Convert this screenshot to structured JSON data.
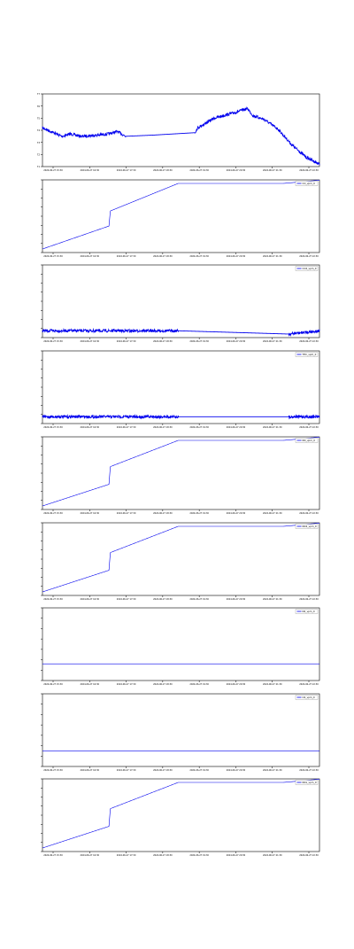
{
  "chart_data": [
    {
      "type": "line",
      "legend": "",
      "y_ticks": [
        "77",
        "76",
        "75",
        "74",
        "73",
        "72",
        "71"
      ],
      "x_ticks": [
        "2024-06-27 15:30",
        "2024-06-27 16:30",
        "2024-06-27 17:30",
        "2024-06-27 18:30",
        "2024-06-27 19:30",
        "2024-06-27 20:30",
        "2024-06-27 21:30",
        "2024-06-27 22:30"
      ],
      "series": [
        {
          "color": "#0000ee",
          "noisy": true,
          "x": [
            0,
            0.03,
            0.07,
            0.1,
            0.14,
            0.2,
            0.24,
            0.27,
            0.3,
            0.4,
            0.55,
            0.56,
            0.62,
            0.7,
            0.74,
            0.76,
            0.8,
            0.85,
            0.9,
            0.95,
            1
          ],
          "y": [
            74.2,
            73.9,
            73.5,
            73.7,
            73.5,
            73.6,
            73.7,
            73.9,
            73.5,
            73.6,
            73.8,
            74.2,
            75.0,
            75.5,
            75.8,
            75.2,
            74.9,
            74.1,
            72.8,
            71.8,
            71.2
          ]
        }
      ],
      "gaps": [
        [
          0.3,
          0.55
        ]
      ]
    },
    {
      "type": "line",
      "legend": "CO_vpm_0",
      "y_ticks": [
        "",
        "",
        "",
        "",
        "",
        "",
        "",
        "",
        ""
      ],
      "x_ticks": [
        "2024-06-27 15:30",
        "2024-06-27 16:30",
        "2024-06-27 17:30",
        "2024-06-27 18:30",
        "2024-06-27 19:30",
        "2024-06-27 20:30",
        "2024-06-27 21:30",
        "2024-06-27 22:30"
      ],
      "series": [
        {
          "color": "#0000ee",
          "noisy": false,
          "x": [
            0,
            0.24,
            0.245,
            0.49,
            0.87,
            0.95,
            1
          ],
          "y": [
            0.0,
            0.35,
            0.58,
            1.0,
            1.0,
            1.03,
            1.05
          ]
        }
      ]
    },
    {
      "type": "line",
      "legend": "CO2_vpm_0",
      "y_ticks": [
        "",
        "",
        "",
        "",
        "",
        "",
        "",
        "",
        ""
      ],
      "x_ticks": [
        "2024-06-27 15:30",
        "2024-06-27 16:30",
        "2024-06-27 17:30",
        "2024-06-27 18:30",
        "2024-06-27 19:30",
        "2024-06-27 20:30",
        "2024-06-27 21:30",
        "2024-06-27 22:30"
      ],
      "series": [
        {
          "color": "#0000ee",
          "noisy": true,
          "x": [
            0,
            0.49,
            0.89,
            1
          ],
          "y": [
            0.05,
            0.05,
            0.0,
            0.05
          ]
        }
      ],
      "gaps": [
        [
          0.49,
          0.89
        ]
      ]
    },
    {
      "type": "line",
      "legend": "THC_vpm_0",
      "y_ticks": [
        "",
        "",
        "",
        "",
        "",
        "",
        "",
        "",
        ""
      ],
      "x_ticks": [
        "2024-06-27 15:30",
        "2024-06-27 16:30",
        "2024-06-27 17:30",
        "2024-06-27 18:30",
        "2024-06-27 19:30",
        "2024-06-27 20:30",
        "2024-06-27 21:30",
        "2024-06-27 22:30"
      ],
      "series": [
        {
          "color": "#0000ee",
          "noisy": true,
          "x": [
            0,
            0.49,
            0.89,
            1
          ],
          "y": [
            0.05,
            0.05,
            0.05,
            0.05
          ]
        }
      ],
      "gaps": [
        [
          0.49,
          0.89
        ]
      ]
    },
    {
      "type": "line",
      "legend": "NO_vpm_0",
      "y_ticks": [
        "",
        "",
        "",
        "",
        "",
        "",
        "",
        "",
        ""
      ],
      "x_ticks": [
        "2024-06-27 15:30",
        "2024-06-27 16:30",
        "2024-06-27 17:30",
        "2024-06-27 18:30",
        "2024-06-27 19:30",
        "2024-06-27 20:30",
        "2024-06-27 21:30",
        "2024-06-27 22:30"
      ],
      "series": [
        {
          "color": "#0000ee",
          "noisy": false,
          "x": [
            0,
            0.24,
            0.245,
            0.49,
            0.87,
            0.95,
            1
          ],
          "y": [
            0.0,
            0.33,
            0.6,
            1.0,
            1.0,
            1.03,
            1.05
          ]
        }
      ]
    },
    {
      "type": "line",
      "legend": "NO2_vpm_0",
      "y_ticks": [
        "",
        "",
        "",
        "",
        "",
        "",
        "",
        "",
        ""
      ],
      "x_ticks": [
        "2024-06-27 15:30",
        "2024-06-27 16:30",
        "2024-06-27 17:30",
        "2024-06-27 18:30",
        "2024-06-27 19:30",
        "2024-06-27 20:30",
        "2024-06-27 21:30",
        "2024-06-27 22:30"
      ],
      "series": [
        {
          "color": "#0000ee",
          "noisy": false,
          "x": [
            0,
            0.24,
            0.245,
            0.49,
            0.87,
            0.95,
            1
          ],
          "y": [
            0.0,
            0.33,
            0.6,
            1.0,
            1.0,
            1.03,
            1.05
          ]
        }
      ]
    },
    {
      "type": "line",
      "legend": "N2_vpm_0",
      "y_ticks": [
        "",
        "",
        "",
        "",
        "",
        "",
        "",
        ""
      ],
      "x_ticks": [
        "2024-06-27 15:30",
        "2024-06-27 16:30",
        "2024-06-27 17:30",
        "2024-06-27 18:30",
        "2024-06-27 19:30",
        "2024-06-27 20:30",
        "2024-06-27 21:30",
        "2024-06-27 22:30"
      ],
      "series": [
        {
          "color": "#0000ee",
          "noisy": false,
          "x": [
            0,
            1
          ],
          "y": [
            0.2,
            0.2
          ]
        }
      ]
    },
    {
      "type": "line",
      "legend": "O2_vpm_0",
      "y_ticks": [
        "",
        "",
        "",
        "",
        "",
        "",
        "",
        ""
      ],
      "x_ticks": [
        "2024-06-27 15:30",
        "2024-06-27 16:30",
        "2024-06-27 17:30",
        "2024-06-27 18:30",
        "2024-06-27 19:30",
        "2024-06-27 20:30",
        "2024-06-27 21:30",
        "2024-06-27 22:30"
      ],
      "series": [
        {
          "color": "#0000ee",
          "noisy": false,
          "x": [
            0,
            1
          ],
          "y": [
            0.18,
            0.18
          ]
        }
      ]
    },
    {
      "type": "line",
      "legend": "NOx_vpm_0",
      "y_ticks": [
        "",
        "",
        "",
        "",
        "",
        "",
        "",
        "",
        ""
      ],
      "x_ticks": [
        "2024-06-27 15:30",
        "2024-06-27 16:30",
        "2024-06-27 17:30",
        "2024-06-27 18:30",
        "2024-06-27 19:30",
        "2024-06-27 20:30",
        "2024-06-27 21:30",
        "2024-06-27 22:30"
      ],
      "series": [
        {
          "color": "#0000ee",
          "noisy": false,
          "x": [
            0,
            0.24,
            0.245,
            0.49,
            0.87,
            0.95,
            1
          ],
          "y": [
            0.0,
            0.33,
            0.6,
            1.0,
            1.0,
            1.03,
            1.05
          ]
        }
      ]
    }
  ]
}
